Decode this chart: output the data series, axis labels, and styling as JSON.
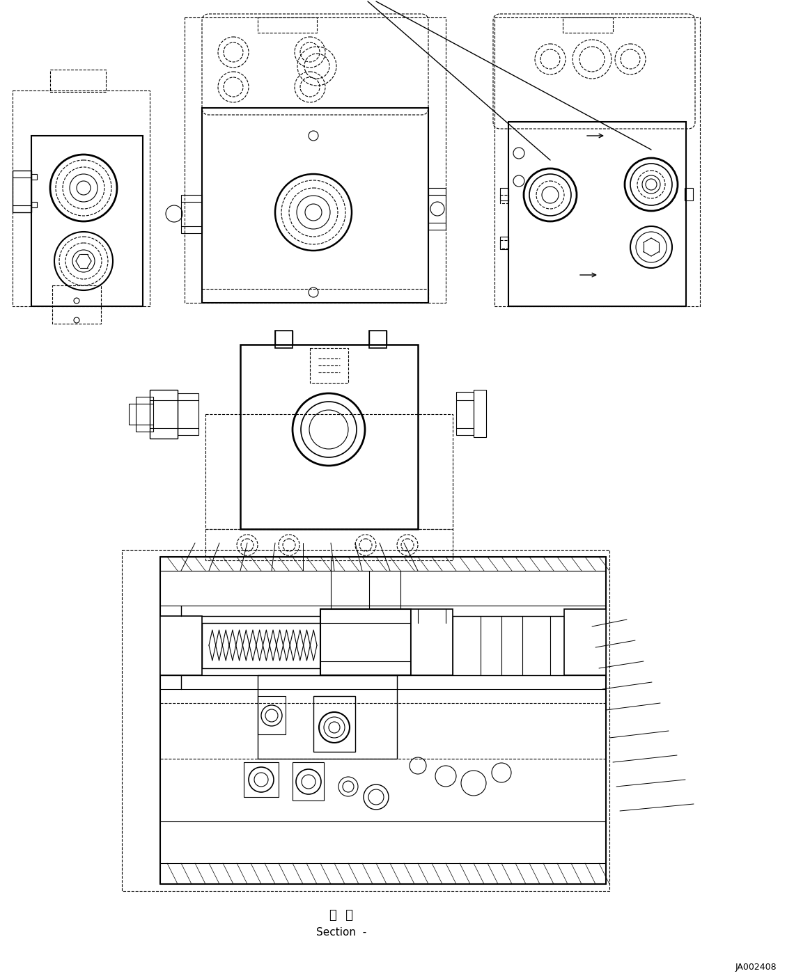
{
  "section_label_jp": "断  面",
  "section_label_en": "Section  -",
  "part_number": "JA002408",
  "bg_color": "#ffffff",
  "line_color": "#000000"
}
